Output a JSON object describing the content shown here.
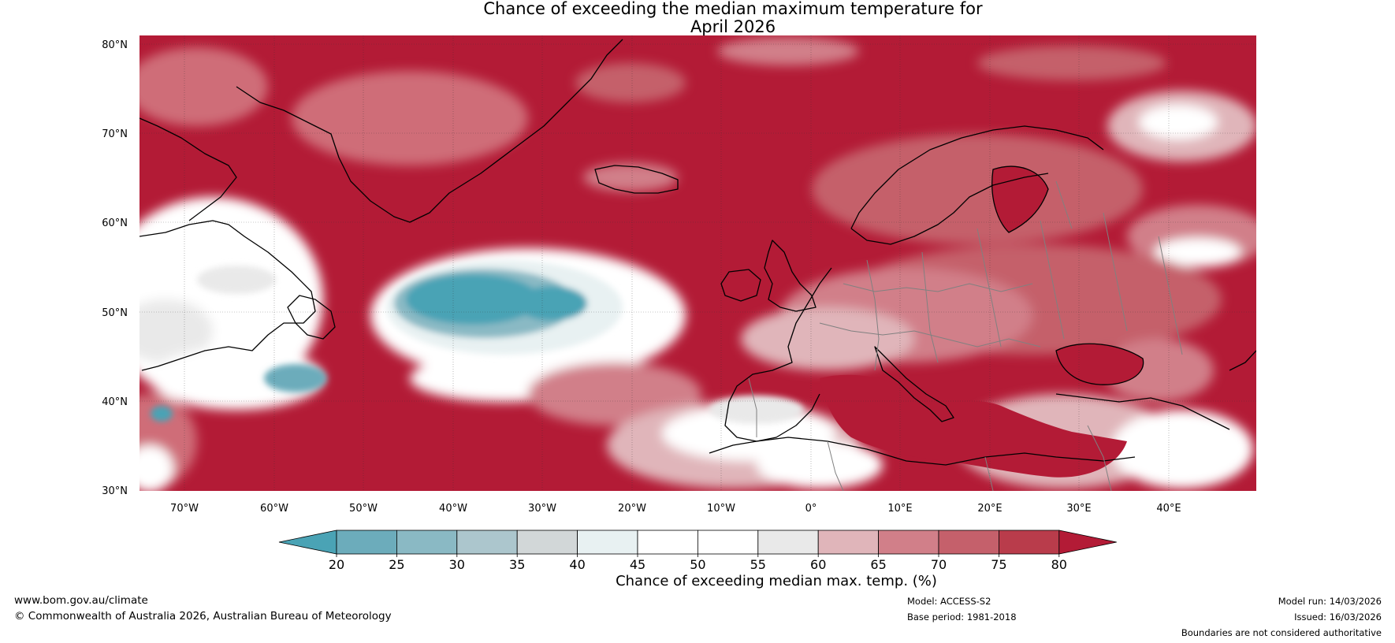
{
  "title": {
    "line1": "Chance of exceeding the median maximum temperature for",
    "line2": "April 2026"
  },
  "map": {
    "latitude_labels": [
      "80°N",
      "70°N",
      "60°N",
      "50°N",
      "40°N",
      "30°N"
    ],
    "longitude_labels": [
      "70°W",
      "60°W",
      "50°W",
      "40°W",
      "30°W",
      "20°W",
      "10°W",
      "0°",
      "10°E",
      "20°E",
      "30°E",
      "40°E"
    ],
    "dominant_color": "#b31b36",
    "coastline_color": "#000000",
    "border_color": "#808080"
  },
  "colorbar": {
    "ticks": [
      "20",
      "25",
      "30",
      "35",
      "40",
      "45",
      "50",
      "55",
      "60",
      "65",
      "70",
      "75",
      "80"
    ],
    "colors": [
      "#4aa3b5",
      "#6cacbb",
      "#8ab9c4",
      "#acc6cd",
      "#d2d7d8",
      "#e8f1f2",
      "#ffffff",
      "#ffffff",
      "#e9e9e9",
      "#e0b5ba",
      "#d17f89",
      "#c5606b",
      "#b93c4b",
      "#b31b36"
    ],
    "label": "Chance of exceeding median max. temp. (%)"
  },
  "footer": {
    "website": "www.bom.gov.au/climate",
    "copyright": "© Commonwealth of Australia 2026, Australian Bureau of Meteorology",
    "model": "Model: ACCESS-S2",
    "base_period": "Base period: 1981-2018",
    "model_run": "Model run: 14/03/2026",
    "issued": "Issued: 16/03/2026",
    "disclaimer": "Boundaries are not considered authoritative"
  }
}
